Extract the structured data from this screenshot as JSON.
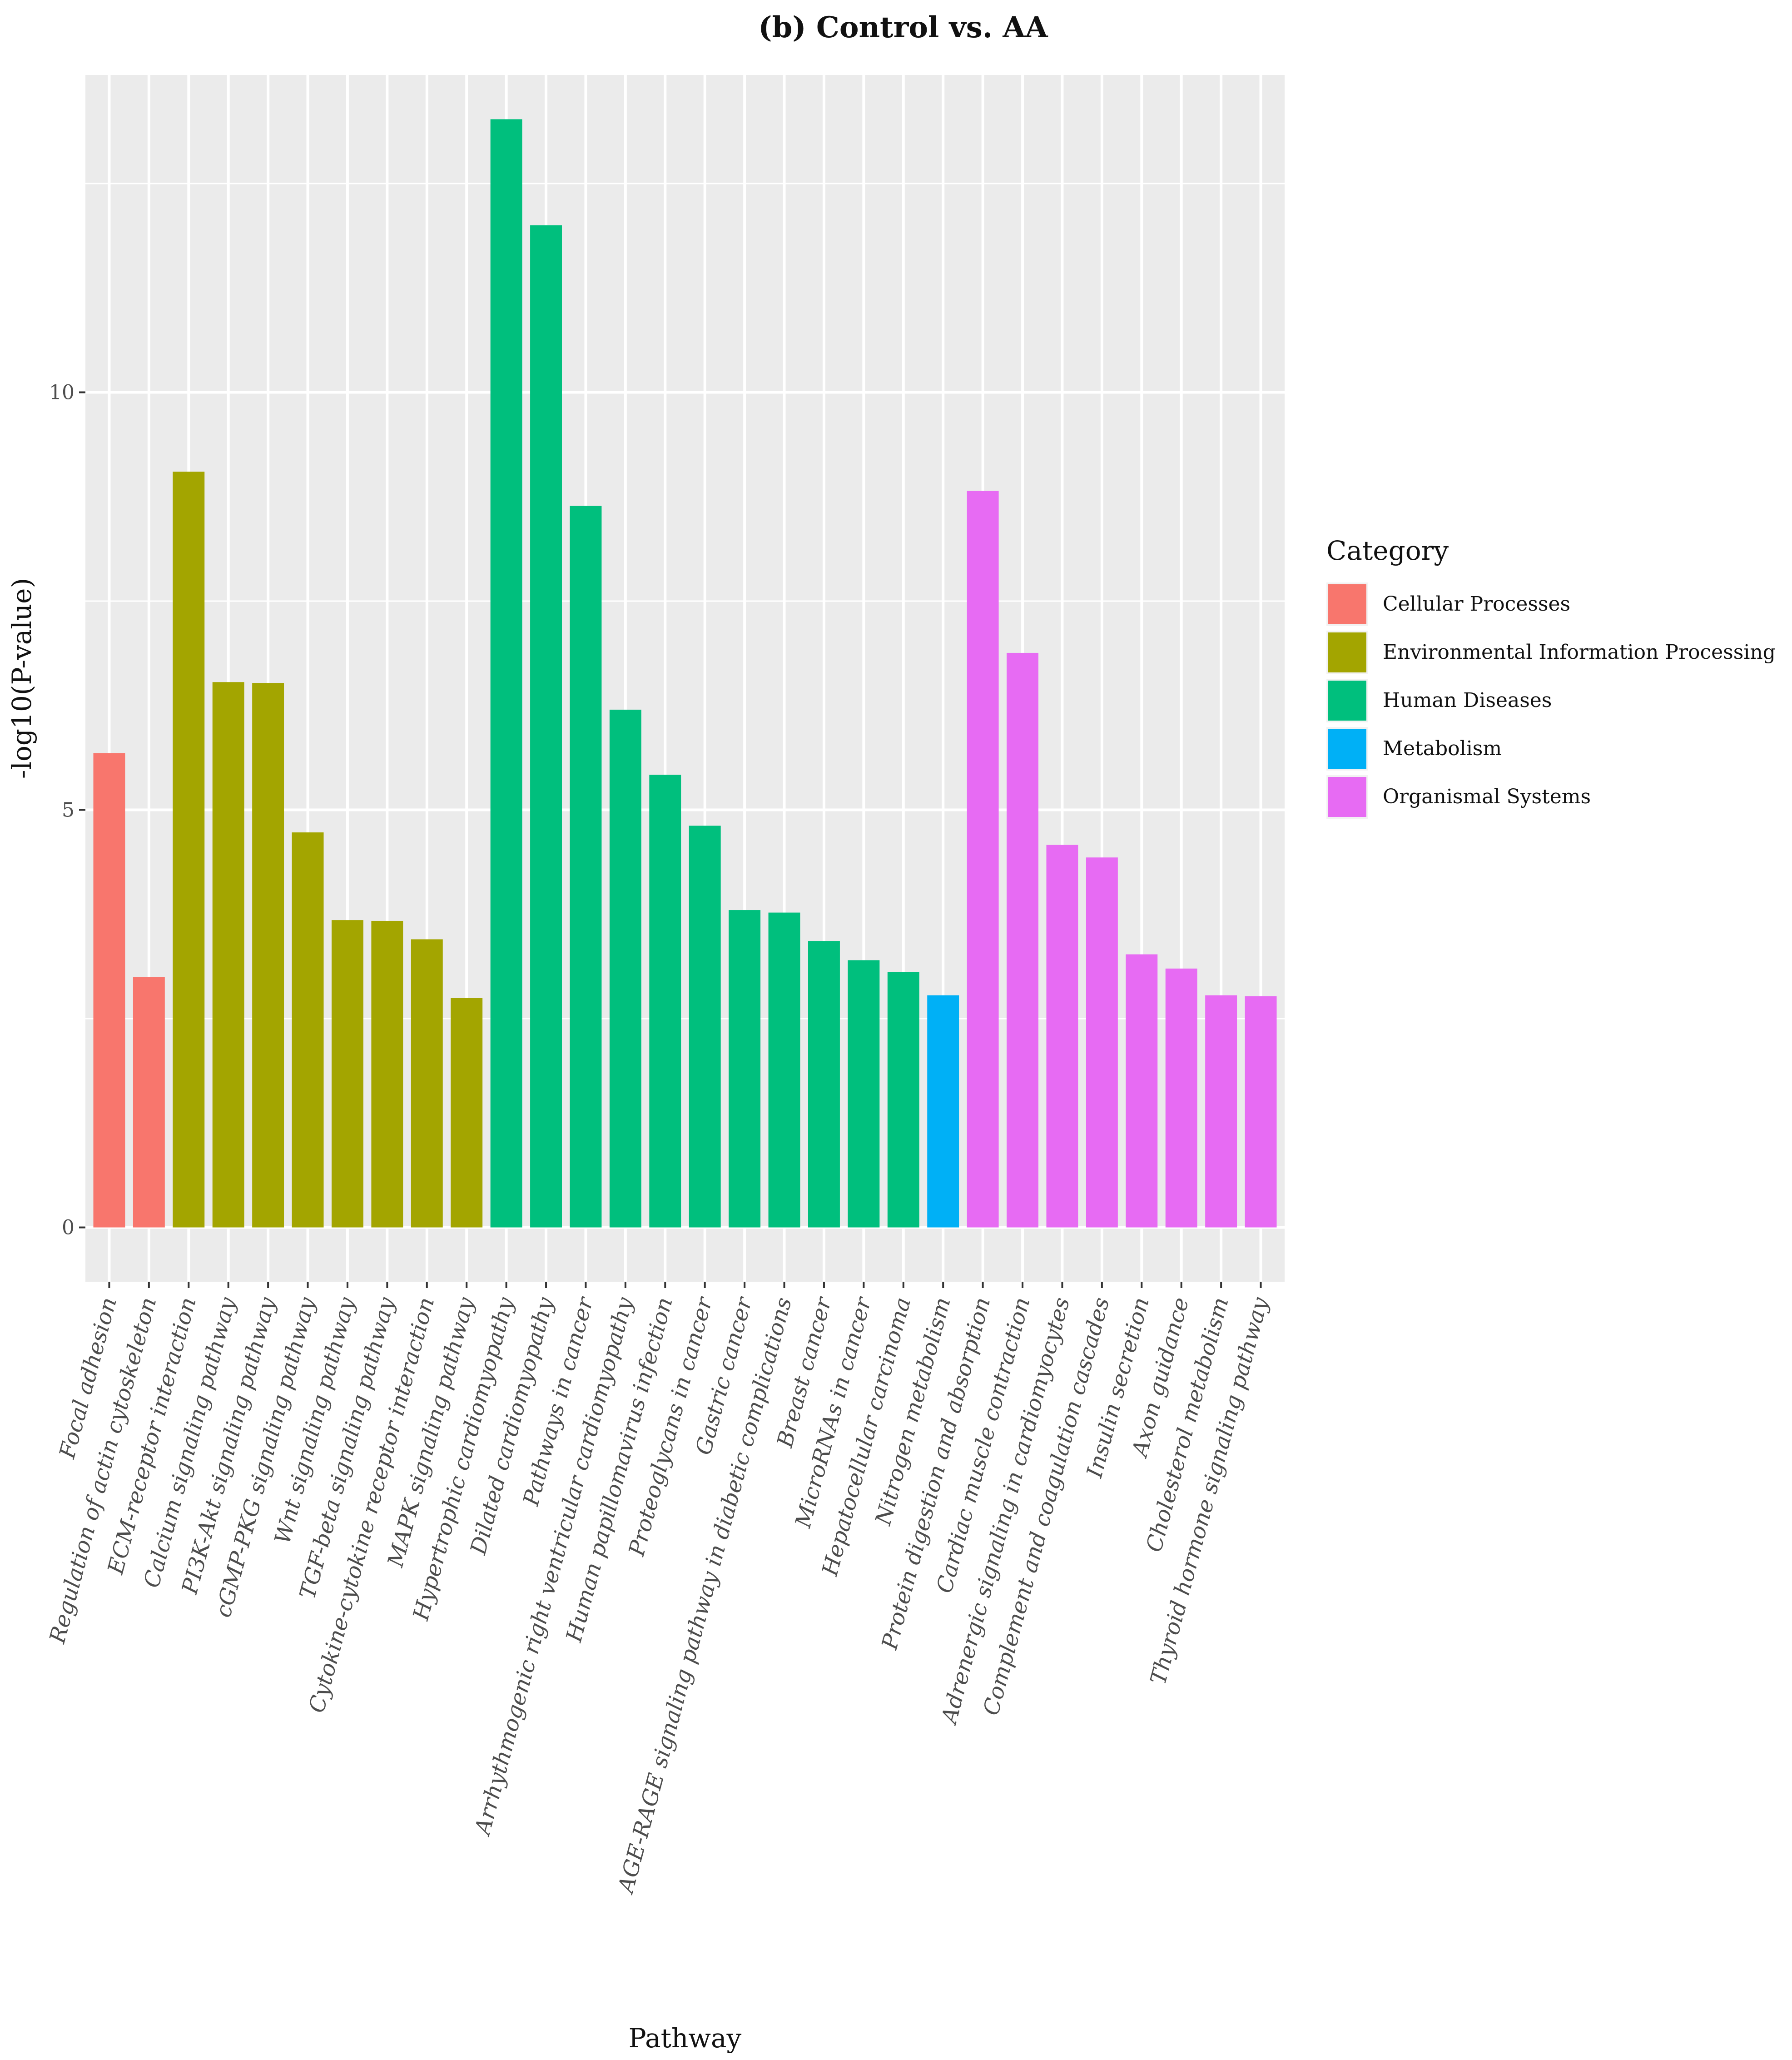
{
  "chart_data": {
    "type": "bar",
    "title": "(b) Control vs. AA",
    "xlabel": "Pathway",
    "ylabel": "-log10(P-value)",
    "ylim": [
      -0.65,
      13.8
    ],
    "yticks": [
      0,
      5,
      10
    ],
    "grid": true,
    "legend": {
      "title": "Category",
      "placement": "right",
      "entries": [
        {
          "name": "Cellular Processes",
          "color": "#F8766D"
        },
        {
          "name": "Environmental Information Processing",
          "color": "#A3A500"
        },
        {
          "name": "Human Diseases",
          "color": "#00BF7D"
        },
        {
          "name": "Metabolism",
          "color": "#00B0F6"
        },
        {
          "name": "Organismal Systems",
          "color": "#E76BF3"
        }
      ]
    },
    "categories": [
      "Focal adhesion",
      "Regulation of actin cytoskeleton",
      "ECM-receptor interaction",
      "Calcium signaling pathway",
      "PI3K-Akt signaling pathway",
      "cGMP-PKG signaling pathway",
      "Wnt signaling pathway",
      "TGF-beta signaling pathway",
      "Cytokine-cytokine receptor interaction",
      "MAPK signaling pathway",
      "Hypertrophic cardiomyopathy",
      "Dilated cardiomyopathy",
      "Pathways in cancer",
      "Arrhythmogenic right ventricular cardiomyopathy",
      "Human papillomavirus infection",
      "Proteoglycans in cancer",
      "Gastric cancer",
      "AGE-RAGE signaling pathway in diabetic complications",
      "Breast cancer",
      "MicroRNAs in cancer",
      "Hepatocellular carcinoma",
      "Nitrogen metabolism",
      "Protein digestion and absorption",
      "Cardiac muscle contraction",
      "Adrenergic signaling in cardiomyocytes",
      "Complement and coagulation cascades",
      "Insulin secretion",
      "Axon guidance",
      "Cholesterol metabolism",
      "Thyroid hormone signaling pathway"
    ],
    "values": [
      5.68,
      3.0,
      9.05,
      6.53,
      6.52,
      4.73,
      3.68,
      3.67,
      3.45,
      2.75,
      13.27,
      12.0,
      8.64,
      6.2,
      5.42,
      4.81,
      3.8,
      3.77,
      3.43,
      3.2,
      3.06,
      2.78,
      8.82,
      6.88,
      4.58,
      4.43,
      3.27,
      3.1,
      2.78,
      2.77
    ],
    "category_group": [
      "Cellular Processes",
      "Cellular Processes",
      "Environmental Information Processing",
      "Environmental Information Processing",
      "Environmental Information Processing",
      "Environmental Information Processing",
      "Environmental Information Processing",
      "Environmental Information Processing",
      "Environmental Information Processing",
      "Environmental Information Processing",
      "Human Diseases",
      "Human Diseases",
      "Human Diseases",
      "Human Diseases",
      "Human Diseases",
      "Human Diseases",
      "Human Diseases",
      "Human Diseases",
      "Human Diseases",
      "Human Diseases",
      "Human Diseases",
      "Metabolism",
      "Organismal Systems",
      "Organismal Systems",
      "Organismal Systems",
      "Organismal Systems",
      "Organismal Systems",
      "Organismal Systems",
      "Organismal Systems",
      "Organismal Systems"
    ],
    "colors": {
      "panel_bg": "#EBEBEB",
      "grid": "#FFFFFF",
      "text": "#111111",
      "axis_text": "#4D4D4D"
    }
  }
}
